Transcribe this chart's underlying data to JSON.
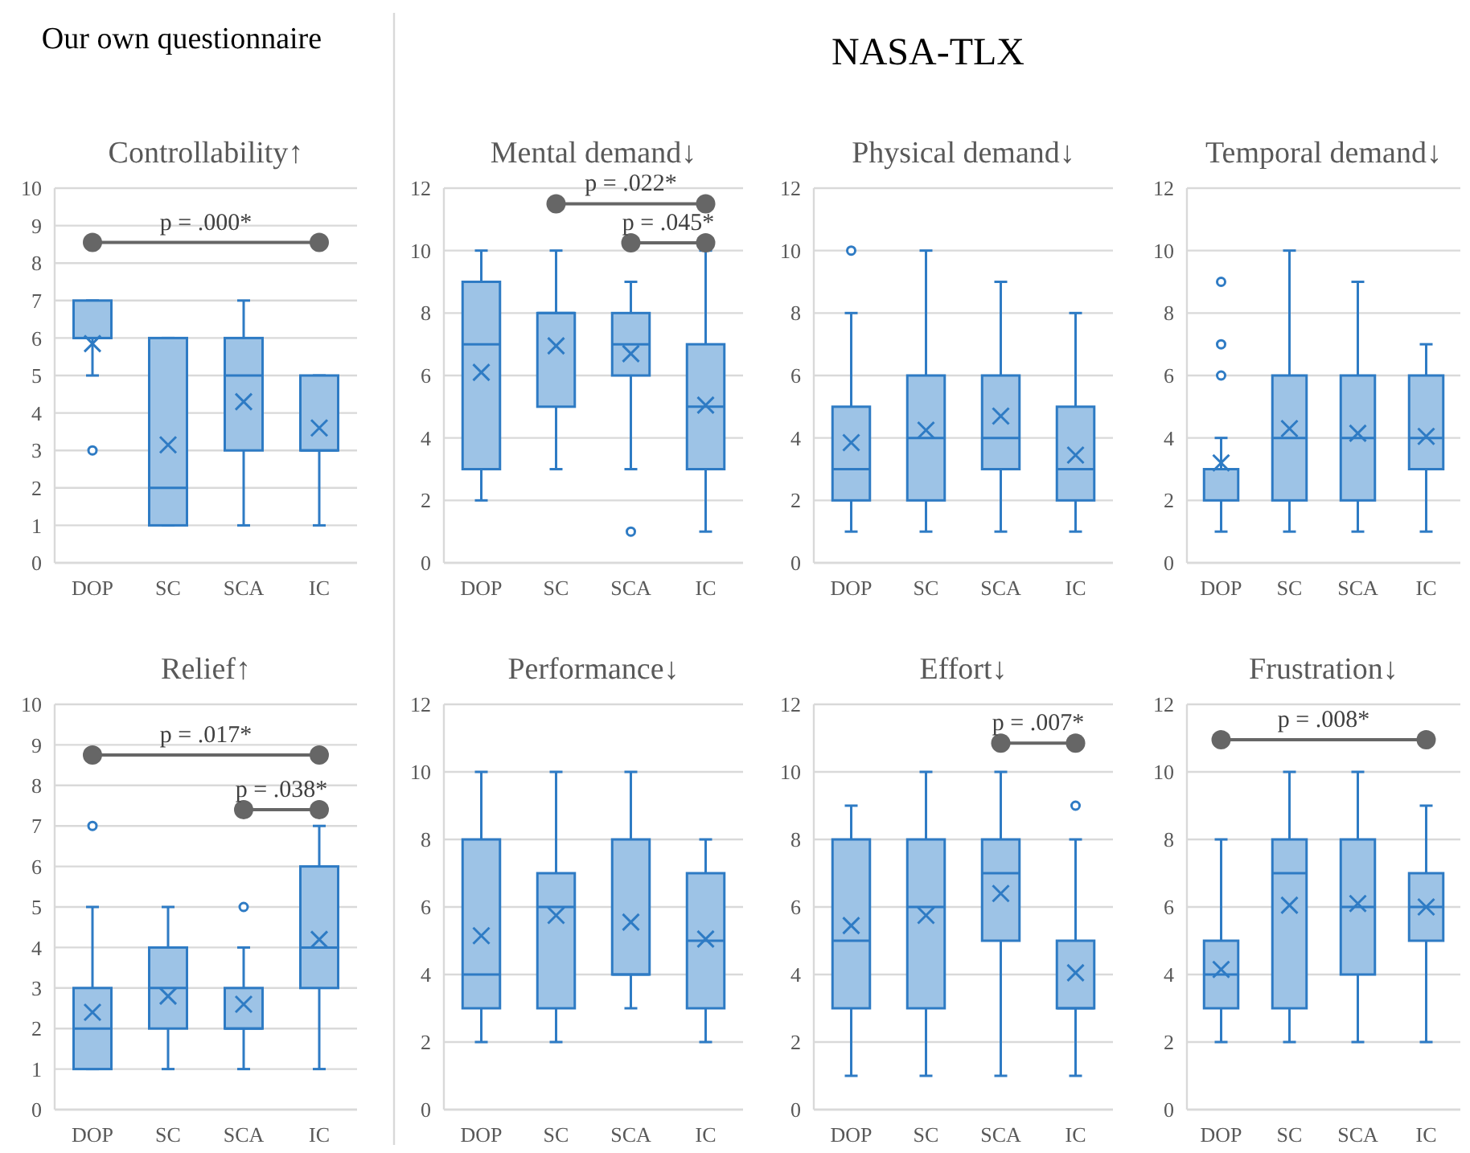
{
  "chart_data": [
    {
      "type": "box",
      "title": "Controllability↑",
      "categories": [
        "DOP",
        "SC",
        "SCA",
        "IC"
      ],
      "color": "#9dc3e6",
      "ylim": [
        0,
        10
      ],
      "yticks": [
        0,
        1,
        2,
        3,
        4,
        5,
        6,
        7,
        8,
        9,
        10
      ],
      "grid": "y",
      "annotations": [
        "Our own questionnaire",
        {
          "text": "p = .000*",
          "x": "DOP",
          "y": 8.55
        }
      ],
      "boxes": [
        {
          "low": 5,
          "q1": 6,
          "median": 6,
          "q3": 7,
          "high": 7,
          "mean": 5.85,
          "outliers": [
            3
          ]
        },
        {
          "low": 1,
          "q1": 1,
          "median": 2,
          "q3": 6,
          "high": 6,
          "mean": 3.15
        },
        {
          "low": 1,
          "q1": 3,
          "median": 5,
          "q3": 6,
          "high": 7,
          "mean": 4.3
        },
        {
          "low": 1,
          "q1": 3,
          "median": 3,
          "q3": 5,
          "high": 5,
          "mean": 3.6
        }
      ]
    },
    {
      "type": "box",
      "title": "Mental demand↓",
      "categories": [
        "DOP",
        "SC",
        "SCA",
        "IC"
      ],
      "color": "#9dc3e6",
      "ylim": [
        0,
        12
      ],
      "yticks": [
        0,
        2,
        4,
        6,
        8,
        10,
        12
      ],
      "grid": "y",
      "annotations": [
        "NASA-TLX",
        {
          "text": "p = .022*",
          "x": "SC",
          "y": 11.5
        },
        {
          "text": "p = .045*",
          "x": "SCA",
          "y": 10.25
        }
      ],
      "boxes": [
        {
          "low": 2,
          "q1": 3,
          "median": 7,
          "q3": 9,
          "high": 10,
          "mean": 6.1
        },
        {
          "low": 3,
          "q1": 5,
          "median": 8,
          "q3": 8,
          "high": 10,
          "mean": 6.95
        },
        {
          "low": 3,
          "q1": 6,
          "median": 7,
          "q3": 8,
          "high": 9,
          "mean": 6.7,
          "outliers": [
            1
          ]
        },
        {
          "low": 1,
          "q1": 3,
          "median": 5,
          "q3": 7,
          "high": 10,
          "mean": 5.05
        }
      ]
    },
    {
      "type": "box",
      "title": "Physical demand↓",
      "categories": [
        "DOP",
        "SC",
        "SCA",
        "IC"
      ],
      "color": "#9dc3e6",
      "ylim": [
        0,
        12
      ],
      "yticks": [
        0,
        2,
        4,
        6,
        8,
        10,
        12
      ],
      "grid": "y",
      "boxes": [
        {
          "low": 1,
          "q1": 2,
          "median": 3,
          "q3": 5,
          "high": 8,
          "mean": 3.85,
          "outliers": [
            10
          ]
        },
        {
          "low": 1,
          "q1": 2,
          "median": 4,
          "q3": 6,
          "high": 10,
          "mean": 4.25
        },
        {
          "low": 1,
          "q1": 3,
          "median": 4,
          "q3": 6,
          "high": 9,
          "mean": 4.7
        },
        {
          "low": 1,
          "q1": 2,
          "median": 3,
          "q3": 5,
          "high": 8,
          "mean": 3.45
        }
      ]
    },
    {
      "type": "box",
      "title": "Temporal demand↓",
      "categories": [
        "DOP",
        "SC",
        "SCA",
        "IC"
      ],
      "color": "#9dc3e6",
      "ylim": [
        0,
        12
      ],
      "yticks": [
        0,
        2,
        4,
        6,
        8,
        10,
        12
      ],
      "grid": "y",
      "boxes": [
        {
          "low": 1,
          "q1": 2,
          "median": 3,
          "q3": 3,
          "high": 4,
          "mean": 3.2,
          "outliers": [
            6,
            7,
            9
          ]
        },
        {
          "low": 1,
          "q1": 2,
          "median": 4,
          "q3": 6,
          "high": 10,
          "mean": 4.3
        },
        {
          "low": 1,
          "q1": 2,
          "median": 4,
          "q3": 6,
          "high": 9,
          "mean": 4.15
        },
        {
          "low": 1,
          "q1": 3,
          "median": 4,
          "q3": 6,
          "high": 7,
          "mean": 4.05
        }
      ]
    },
    {
      "type": "box",
      "title": "Relief↑",
      "categories": [
        "DOP",
        "SC",
        "SCA",
        "IC"
      ],
      "color": "#9dc3e6",
      "ylim": [
        0,
        10
      ],
      "yticks": [
        0,
        1,
        2,
        3,
        4,
        5,
        6,
        7,
        8,
        9,
        10
      ],
      "grid": "y",
      "annotations": [
        {
          "text": "p = .017*",
          "x": "DOP",
          "y": 8.75
        },
        {
          "text": "p = .038*",
          "x": "SCA",
          "y": 7.4
        }
      ],
      "boxes": [
        {
          "low": 1,
          "q1": 1,
          "median": 2,
          "q3": 3,
          "high": 5,
          "mean": 2.4,
          "outliers": [
            7
          ]
        },
        {
          "low": 1,
          "q1": 2,
          "median": 3,
          "q3": 4,
          "high": 5,
          "mean": 2.8
        },
        {
          "low": 1,
          "q1": 2,
          "median": 2,
          "q3": 3,
          "high": 4,
          "mean": 2.6,
          "outliers": [
            5
          ]
        },
        {
          "low": 1,
          "q1": 3,
          "median": 4,
          "q3": 6,
          "high": 7,
          "mean": 4.2
        }
      ]
    },
    {
      "type": "box",
      "title": "Performance↓",
      "categories": [
        "DOP",
        "SC",
        "SCA",
        "IC"
      ],
      "color": "#9dc3e6",
      "ylim": [
        0,
        12
      ],
      "yticks": [
        0,
        2,
        4,
        6,
        8,
        10,
        12
      ],
      "grid": "y",
      "boxes": [
        {
          "low": 2,
          "q1": 3,
          "median": 4,
          "q3": 8,
          "high": 10,
          "mean": 5.15
        },
        {
          "low": 2,
          "q1": 3,
          "median": 6,
          "q3": 7,
          "high": 10,
          "mean": 5.75
        },
        {
          "low": 3,
          "q1": 4,
          "median": 4,
          "q3": 8,
          "high": 10,
          "mean": 5.55
        },
        {
          "low": 2,
          "q1": 3,
          "median": 5,
          "q3": 7,
          "high": 8,
          "mean": 5.05
        }
      ]
    },
    {
      "type": "box",
      "title": "Effort↓",
      "categories": [
        "DOP",
        "SC",
        "SCA",
        "IC"
      ],
      "color": "#9dc3e6",
      "ylim": [
        0,
        12
      ],
      "yticks": [
        0,
        2,
        4,
        6,
        8,
        10,
        12
      ],
      "grid": "y",
      "annotations": [
        {
          "text": "p = .007*",
          "x": "SCA",
          "y": 10.85
        }
      ],
      "boxes": [
        {
          "low": 1,
          "q1": 3,
          "median": 5,
          "q3": 8,
          "high": 9,
          "mean": 5.45
        },
        {
          "low": 1,
          "q1": 3,
          "median": 6,
          "q3": 8,
          "high": 10,
          "mean": 5.75
        },
        {
          "low": 1,
          "q1": 5,
          "median": 7,
          "q3": 8,
          "high": 10,
          "mean": 6.4
        },
        {
          "low": 1,
          "q1": 3,
          "median": 3,
          "q3": 5,
          "high": 8,
          "mean": 4.05,
          "outliers": [
            9
          ]
        }
      ]
    },
    {
      "type": "box",
      "title": "Frustration↓",
      "categories": [
        "DOP",
        "SC",
        "SCA",
        "IC"
      ],
      "color": "#9dc3e6",
      "ylim": [
        0,
        12
      ],
      "yticks": [
        0,
        2,
        4,
        6,
        8,
        10,
        12
      ],
      "grid": "y",
      "annotations": [
        {
          "text": "p = .008*",
          "x": "DOP",
          "y": 10.95
        }
      ],
      "boxes": [
        {
          "low": 2,
          "q1": 3,
          "median": 4,
          "q3": 5,
          "high": 8,
          "mean": 4.15
        },
        {
          "low": 2,
          "q1": 3,
          "median": 7,
          "q3": 8,
          "high": 10,
          "mean": 6.05
        },
        {
          "low": 2,
          "q1": 4,
          "median": 6,
          "q3": 8,
          "high": 10,
          "mean": 6.1
        },
        {
          "low": 2,
          "q1": 5,
          "median": 6,
          "q3": 7,
          "high": 9,
          "mean": 6.0
        }
      ]
    }
  ]
}
